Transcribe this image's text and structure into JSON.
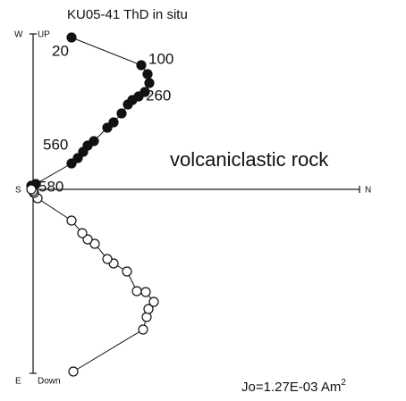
{
  "chart_data": {
    "type": "zijderveld",
    "title": "KU05-41 ThD in situ",
    "annotation": "volcaniclastic rock",
    "moment": "Jo=1.27E-03 Am",
    "moment_exponent": "2",
    "axis_labels": {
      "up": "UP",
      "west": "W",
      "south": "S",
      "north": "N",
      "east": "E",
      "down": "Down"
    },
    "xlim": [
      -5,
      365
    ],
    "ylim": [
      -206,
      172
    ],
    "series": [
      {
        "name": "horizontal",
        "color": "#111111",
        "filled": true,
        "x": [
          43,
          121,
          128,
          130,
          125,
          118,
          111,
          106,
          99,
          90,
          83,
          68,
          61,
          56,
          50,
          43,
          3,
          -2
        ],
        "y": [
          170,
          139,
          129,
          119,
          109,
          104,
          100,
          95,
          85,
          75,
          69,
          54,
          49,
          42,
          35,
          29,
          6,
          4
        ],
        "labels": [
          "20",
          "100",
          null,
          null,
          null,
          "260",
          null,
          null,
          null,
          null,
          null,
          null,
          null,
          null,
          null,
          "560",
          null,
          "580"
        ]
      },
      {
        "name": "vertical",
        "color": "#111111",
        "filled": false,
        "x": [
          45,
          123,
          127,
          129,
          135,
          126,
          116,
          105,
          90,
          83,
          69,
          61,
          55,
          43,
          5,
          1,
          0,
          -2
        ],
        "y": [
          -204,
          -157,
          -143,
          -134,
          -126,
          -115,
          -114,
          -92,
          -83,
          -78,
          -61,
          -56,
          -49,
          -35,
          -10,
          -4,
          -2,
          0
        ]
      }
    ]
  }
}
